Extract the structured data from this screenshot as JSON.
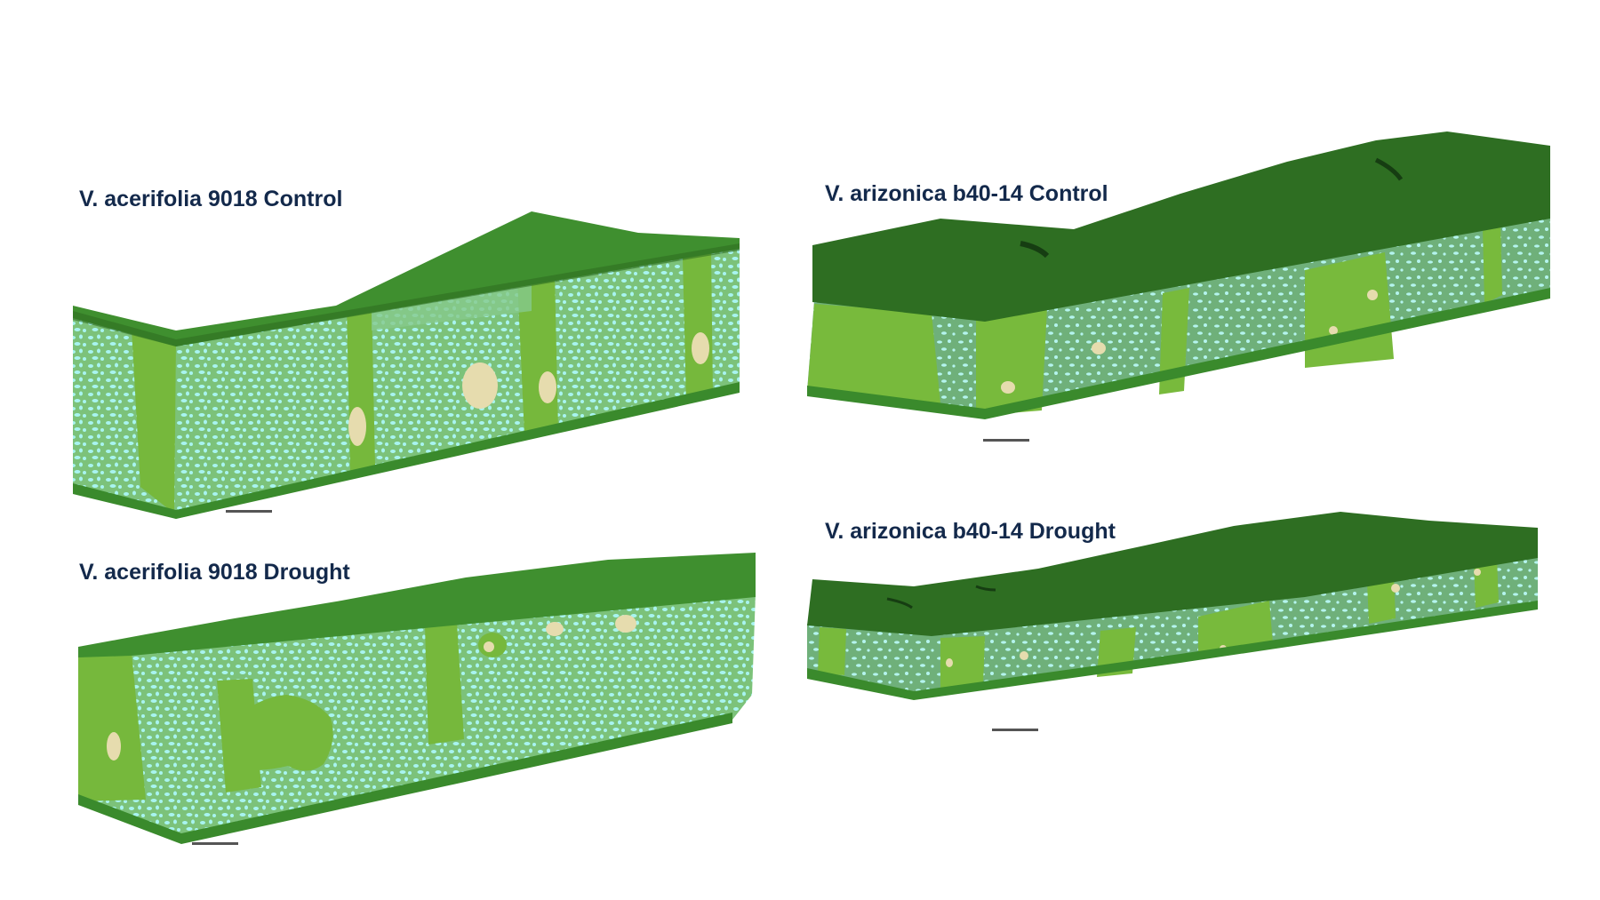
{
  "panels": [
    {
      "title": "V. acerifolia 9018 Control"
    },
    {
      "title": "V. arizonica b40-14 Control"
    },
    {
      "title": "V. acerifolia 9018 Drought"
    },
    {
      "title": "V. arizonica b40-14 Drought"
    }
  ],
  "colors": {
    "epidermis_top": "#3f8f2f",
    "epidermis_dark": "#2e6e22",
    "epidermis_bottom": "#3a8a2c",
    "mesophyll": "#7cc27a",
    "airspace": "#a8f4f0",
    "bundle_sheath": "#76b83c",
    "vein_tissue": "#e6dcae",
    "title": "#13294b",
    "scale_bar": "#555555"
  }
}
